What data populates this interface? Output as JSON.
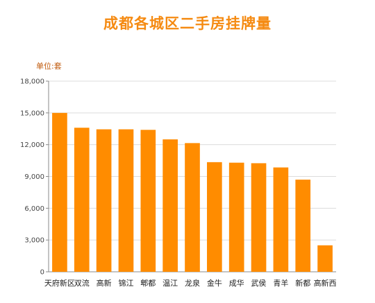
{
  "chart_data": {
    "type": "bar",
    "title": "成都各城区二手房挂牌量",
    "unit": "单位:套",
    "categories": [
      "天府新区",
      "双流",
      "高新",
      "锦江",
      "郫都",
      "温江",
      "龙泉",
      "金牛",
      "成华",
      "武侯",
      "青羊",
      "新都",
      "高新西"
    ],
    "values": [
      15000,
      13600,
      13450,
      13450,
      13400,
      12500,
      12150,
      10350,
      10300,
      10250,
      9850,
      8700,
      2500
    ],
    "ylim": [
      0,
      18000
    ],
    "yticks": [
      0,
      3000,
      6000,
      9000,
      12000,
      15000,
      18000
    ],
    "ytick_labels": [
      "0",
      "3,000",
      "6,000",
      "9,000",
      "12,000",
      "15,000",
      "18,000"
    ],
    "grid": true,
    "bar_color": "#ff8c00"
  }
}
